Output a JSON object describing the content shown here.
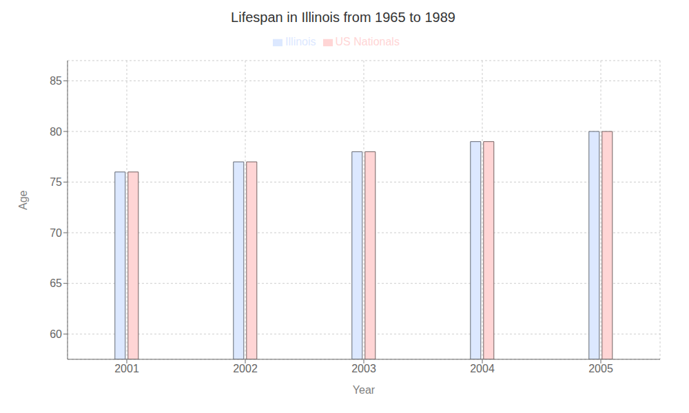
{
  "chart_data": {
    "type": "bar",
    "title": "Lifespan in Illinois from 1965 to 1989",
    "x_label": "Year",
    "y_label": "Age",
    "categories": [
      "2001",
      "2002",
      "2003",
      "2004",
      "2005"
    ],
    "series": [
      {
        "name": "Illinois",
        "color": "#dce8ff",
        "values": [
          76,
          77,
          78,
          79,
          80
        ]
      },
      {
        "name": "US Nationals",
        "color": "#ffd5d5",
        "values": [
          76,
          77,
          78,
          79,
          80
        ]
      }
    ],
    "ylim": [
      57.5,
      87
    ],
    "yticks": [
      60,
      65,
      70,
      75,
      80,
      85
    ],
    "grid": true,
    "legend": "top"
  }
}
